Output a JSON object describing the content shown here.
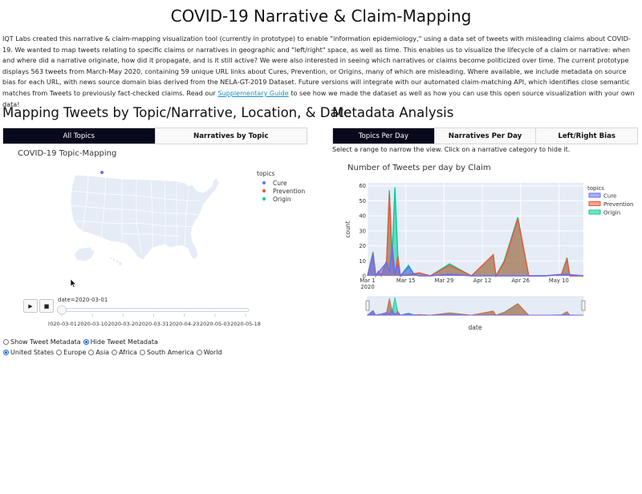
{
  "page": {
    "title": "COVID-19 Narrative & Claim-Mapping",
    "intro_before_link": "IQT Labs created this narrative & claim-mapping visualization tool (currently in prototype) to enable \"information epidemiology,\" using a data set of tweets with misleading claims about COVID-19. We wanted to map tweets relating to specific claims or narratives in geographic and \"left/right\" space, as well as time. This enables us to visualize the lifecycle of a claim or narrative: when and where did a narrative originate, how did it propagate, and is it still active? We were also interested in seeing which narratives or claims become politicized over time. The current prototype displays 563 tweets from March-May 2020, containing 59 unique URL links about Cures, Prevention, or Origins, many of which are misleading. Where available, we include metadata on source bias for each URL, with news source domain bias derived from the NELA-GT-2019 Dataset. Future versions will integrate with our automated claim-matching API, which identifies close semantic matches from Tweets to previously fact-checked claims. Read our ",
    "intro_link": "Supplementary Guide",
    "intro_after_link": " to see how we made the dataset as well as how you can use this open source visualization with your own data!"
  },
  "left": {
    "heading": "Mapping Tweets by Topic/Narrative, Location, & Date",
    "tabs": [
      "All Topics",
      "Narratives by Topic"
    ],
    "map_title": "COVID-19 Topic-Mapping",
    "legend_title": "topics",
    "legend": [
      {
        "label": "Cure",
        "color": "#636efa"
      },
      {
        "label": "Prevention",
        "color": "#ef553b"
      },
      {
        "label": "Origin",
        "color": "#00cc96"
      }
    ],
    "play_icon": "play-icon",
    "stop_icon": "stop-icon",
    "slider_label": "date=2020-03-01",
    "slider_value": 0,
    "slider_ticks": [
      "2020-03-01",
      "2020-03-10",
      "2020-03-20",
      "2020-03-31",
      "2020-04-23",
      "2020-05-03",
      "2020-05-18"
    ],
    "metadata_options": [
      "Show Tweet Metadata",
      "Hide Tweet Metadata"
    ],
    "metadata_selected": "Hide Tweet Metadata",
    "region_options": [
      "United States",
      "Europe",
      "Asia",
      "Africa",
      "South America",
      "World"
    ],
    "region_selected": "United States"
  },
  "right": {
    "heading": "Metadata Analysis",
    "tabs": [
      "Topics Per Day",
      "Narratives Per Day",
      "Left/Right Bias"
    ],
    "hint": "Select a range to narrow the view. Click on a narrative category to hide it."
  },
  "chart_data": {
    "type": "area",
    "title": "Number of Tweets per day by Claim",
    "xlabel": "date",
    "ylabel": "count",
    "x_tick_labels": [
      "Mar 1\n2020",
      "Mar 15",
      "Mar 29",
      "Apr 12",
      "Apr 26",
      "May 10"
    ],
    "y_ticks": [
      0,
      10,
      20,
      30,
      40,
      50,
      60
    ],
    "ylim": [
      0,
      62
    ],
    "xlim": [
      "2020-03-01",
      "2020-05-19"
    ],
    "legend_title": "topics",
    "legend_position": "top-right",
    "grid": true,
    "stacked": false,
    "series": [
      {
        "name": "Cure",
        "color": "#636efa",
        "points": [
          [
            "2020-03-01",
            0
          ],
          [
            "2020-03-03",
            14
          ],
          [
            "2020-03-04",
            0
          ],
          [
            "2020-03-08",
            9
          ],
          [
            "2020-03-09",
            3
          ],
          [
            "2020-03-10",
            20
          ],
          [
            "2020-03-11",
            2
          ],
          [
            "2020-03-12",
            7
          ],
          [
            "2020-03-13",
            0
          ],
          [
            "2020-03-16",
            6
          ],
          [
            "2020-03-18",
            1
          ],
          [
            "2020-03-20",
            0
          ],
          [
            "2020-03-24",
            0
          ],
          [
            "2020-03-31",
            1
          ],
          [
            "2020-04-08",
            0
          ],
          [
            "2020-04-16",
            0
          ],
          [
            "2020-04-26",
            0
          ],
          [
            "2020-05-05",
            0
          ],
          [
            "2020-05-13",
            1
          ],
          [
            "2020-05-19",
            0
          ]
        ]
      },
      {
        "name": "Prevention",
        "color": "#ef553b",
        "points": [
          [
            "2020-03-01",
            0
          ],
          [
            "2020-03-03",
            15
          ],
          [
            "2020-03-04",
            0
          ],
          [
            "2020-03-05",
            3
          ],
          [
            "2020-03-06",
            0
          ],
          [
            "2020-03-08",
            10
          ],
          [
            "2020-03-09",
            55
          ],
          [
            "2020-03-10",
            12
          ],
          [
            "2020-03-11",
            0
          ],
          [
            "2020-03-12",
            13
          ],
          [
            "2020-03-13",
            0
          ],
          [
            "2020-03-16",
            1
          ],
          [
            "2020-03-20",
            2
          ],
          [
            "2020-03-24",
            0
          ],
          [
            "2020-03-31",
            7
          ],
          [
            "2020-04-08",
            0
          ],
          [
            "2020-04-16",
            14
          ],
          [
            "2020-04-17",
            0
          ],
          [
            "2020-04-20",
            9
          ],
          [
            "2020-04-25",
            38
          ],
          [
            "2020-04-29",
            0
          ],
          [
            "2020-05-05",
            0
          ],
          [
            "2020-05-11",
            1
          ],
          [
            "2020-05-13",
            11
          ],
          [
            "2020-05-14",
            0
          ],
          [
            "2020-05-19",
            0
          ]
        ]
      },
      {
        "name": "Origin",
        "color": "#00cc96",
        "points": [
          [
            "2020-03-01",
            0
          ],
          [
            "2020-03-03",
            16
          ],
          [
            "2020-03-04",
            0
          ],
          [
            "2020-03-05",
            3
          ],
          [
            "2020-03-06",
            0
          ],
          [
            "2020-03-08",
            10
          ],
          [
            "2020-03-09",
            57
          ],
          [
            "2020-03-10",
            12
          ],
          [
            "2020-03-11",
            59
          ],
          [
            "2020-03-12",
            15
          ],
          [
            "2020-03-13",
            0
          ],
          [
            "2020-03-16",
            7
          ],
          [
            "2020-03-18",
            1
          ],
          [
            "2020-03-20",
            2
          ],
          [
            "2020-03-24",
            0
          ],
          [
            "2020-03-31",
            8
          ],
          [
            "2020-04-08",
            0
          ],
          [
            "2020-04-16",
            14
          ],
          [
            "2020-04-17",
            0
          ],
          [
            "2020-04-20",
            10
          ],
          [
            "2020-04-25",
            39
          ],
          [
            "2020-04-29",
            0
          ],
          [
            "2020-05-05",
            0
          ],
          [
            "2020-05-11",
            1
          ],
          [
            "2020-05-13",
            12
          ],
          [
            "2020-05-14",
            0
          ],
          [
            "2020-05-19",
            0
          ]
        ]
      }
    ]
  }
}
